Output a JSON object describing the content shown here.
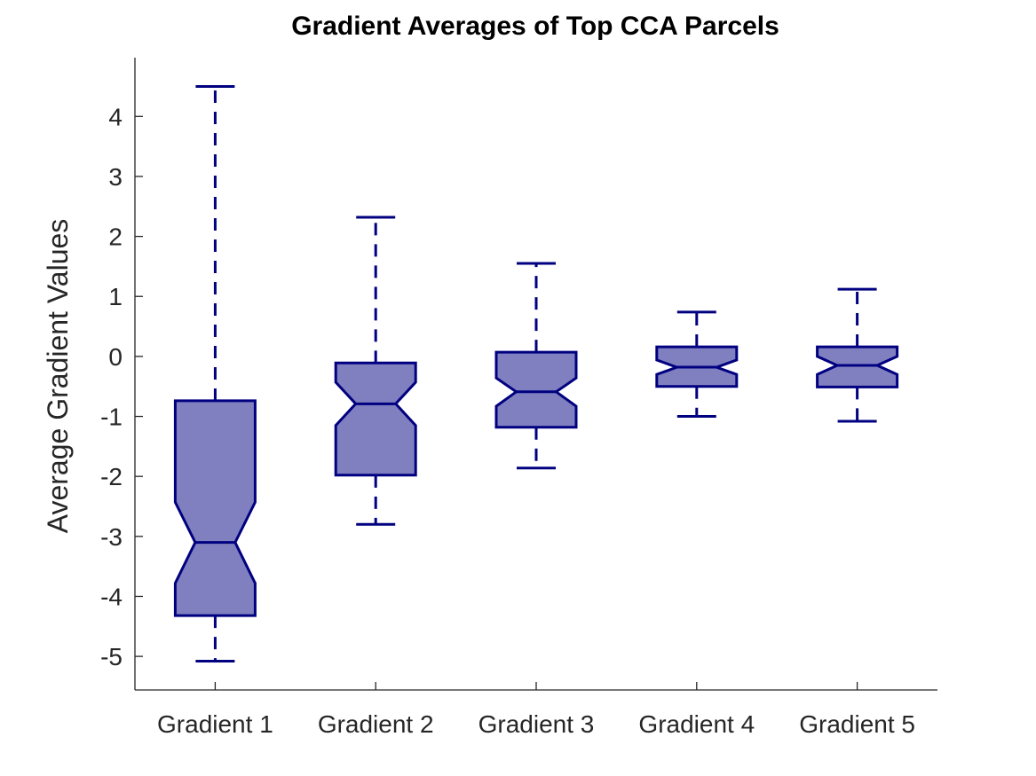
{
  "chart_data": {
    "type": "box",
    "title": "Gradient Averages of Top CCA Parcels",
    "xlabel": "",
    "ylabel": "Average Gradient Values",
    "categories": [
      "Gradient 1",
      "Gradient 2",
      "Gradient 3",
      "Gradient 4",
      "Gradient 5"
    ],
    "boxes": [
      {
        "whisker_low": -5.08,
        "q1": -4.32,
        "notch_low": -3.78,
        "median": -3.1,
        "notch_high": -2.43,
        "q3": -0.74,
        "whisker_high": 4.5
      },
      {
        "whisker_low": -2.8,
        "q1": -1.98,
        "notch_low": -1.15,
        "median": -0.79,
        "notch_high": -0.43,
        "q3": -0.11,
        "whisker_high": 2.32
      },
      {
        "whisker_low": -1.86,
        "q1": -1.18,
        "notch_low": -0.83,
        "median": -0.59,
        "notch_high": -0.36,
        "q3": 0.07,
        "whisker_high": 1.55
      },
      {
        "whisker_low": -1.0,
        "q1": -0.5,
        "notch_low": -0.3,
        "median": -0.18,
        "notch_high": -0.06,
        "q3": 0.16,
        "whisker_high": 0.74
      },
      {
        "whisker_low": -1.08,
        "q1": -0.51,
        "notch_low": -0.3,
        "median": -0.15,
        "notch_high": 0.0,
        "q3": 0.16,
        "whisker_high": 1.12
      }
    ],
    "yticks": [
      -5,
      -4,
      -3,
      -2,
      -1,
      0,
      1,
      2,
      3,
      4
    ],
    "ylim": [
      -5.56,
      4.98
    ],
    "colors": {
      "box_fill": "#8080c0",
      "box_edge": "#000080",
      "axis": "#262626",
      "title": "#000000"
    },
    "grid": false,
    "notched": true,
    "legend": "none"
  }
}
